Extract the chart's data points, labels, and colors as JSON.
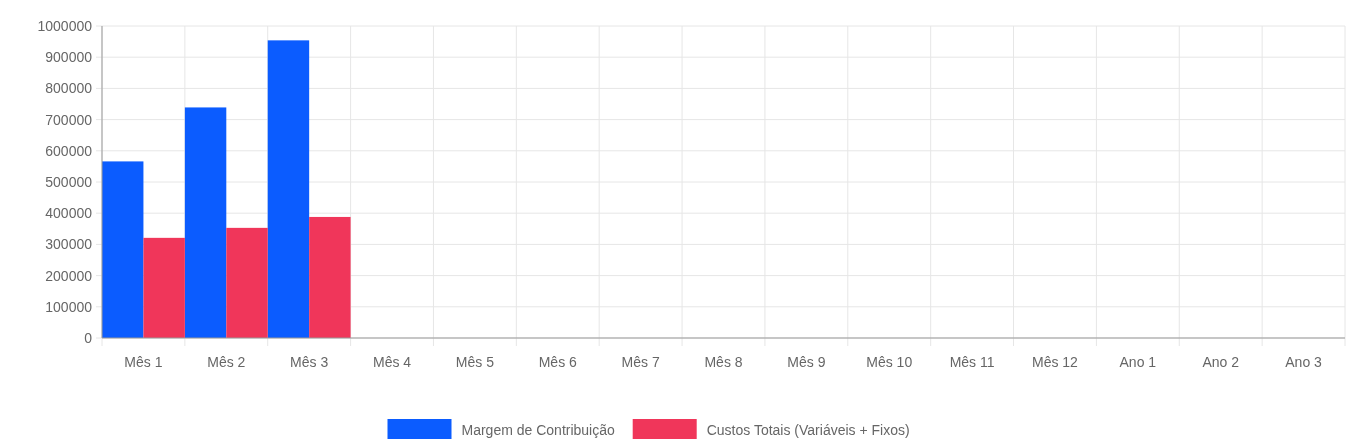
{
  "chart_data": {
    "type": "bar",
    "categories": [
      "Mês 1",
      "Mês 2",
      "Mês 3",
      "Mês 4",
      "Mês 5",
      "Mês 6",
      "Mês 7",
      "Mês 8",
      "Mês 9",
      "Mês 10",
      "Mês 11",
      "Mês 12",
      "Ano 1",
      "Ano 2",
      "Ano 3"
    ],
    "series": [
      {
        "name": "Margem de Contribuição",
        "color": "#0b5cff",
        "values": [
          566000,
          739000,
          954000,
          null,
          null,
          null,
          null,
          null,
          null,
          null,
          null,
          null,
          null,
          null,
          null
        ]
      },
      {
        "name": "Custos Totais (Variáveis + Fixos)",
        "color": "#f0365a",
        "values": [
          321000,
          353000,
          388000,
          null,
          null,
          null,
          null,
          null,
          null,
          null,
          null,
          null,
          null,
          null,
          null
        ]
      }
    ],
    "ylim": [
      0,
      1000000
    ],
    "yticks": [
      0,
      100000,
      200000,
      300000,
      400000,
      500000,
      600000,
      700000,
      800000,
      900000,
      1000000
    ],
    "grid": true,
    "legend": "bottom"
  }
}
